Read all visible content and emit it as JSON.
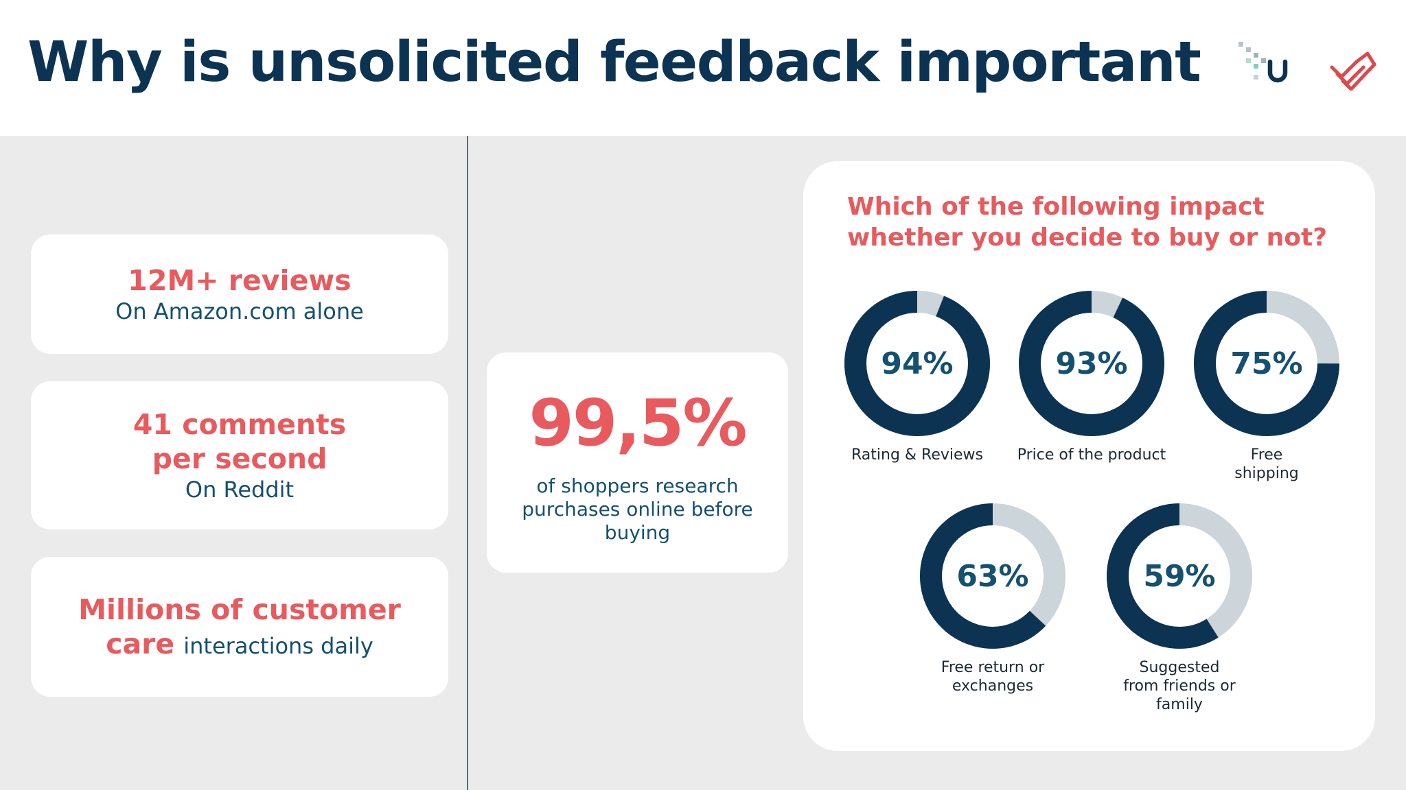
{
  "title": "Why is unsolicited feedback important",
  "colors": {
    "navy": "#0c3352",
    "accent_red": "#e85a5d",
    "teal_blue": "#14506f",
    "ring_track": "#ccd5da",
    "background": "#ebebeb"
  },
  "logos": [
    "dotted-u-logo-icon",
    "red-check-stack-logo-icon"
  ],
  "stats": [
    {
      "headline": "12M+ reviews",
      "subline": "On Amazon.com alone"
    },
    {
      "headline_line1": "41 comments",
      "headline_line2": "per second",
      "subline": "On Reddit"
    },
    {
      "headline_line1": "Millions of customer",
      "headline_line2": "care",
      "subline": "interactions daily"
    }
  ],
  "center_stat": {
    "value": "99,5%",
    "description": "of shoppers research purchases online before buying"
  },
  "survey": {
    "question_line1": "Which of the following impact",
    "question_line2": "whether you decide to buy or not?",
    "items": [
      {
        "percent_label": "94%",
        "value": 94,
        "label": "Rating & Reviews"
      },
      {
        "percent_label": "93%",
        "value": 93,
        "label": "Price of the product"
      },
      {
        "percent_label": "75%",
        "value": 75,
        "label_line1": "Free",
        "label_line2": "shipping"
      },
      {
        "percent_label": "63%",
        "value": 63,
        "label_line1": "Free return or",
        "label_line2": "exchanges"
      },
      {
        "percent_label": "59%",
        "value": 59,
        "label_line1": "Suggested",
        "label_line2": "from friends or",
        "label_line3": "family"
      }
    ]
  }
}
